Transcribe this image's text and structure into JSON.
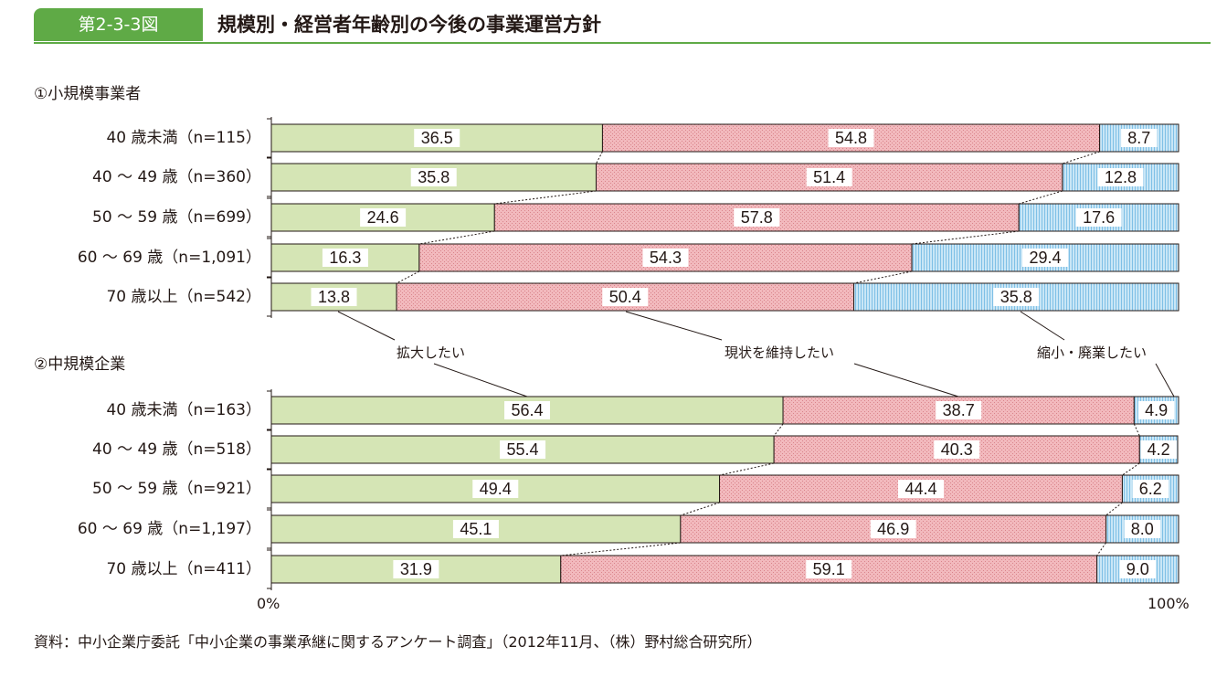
{
  "header": {
    "figure_number": "第2-3-3図",
    "title": "規模別・経営者年齢別の今後の事業運営方針"
  },
  "colors": {
    "accent": "#5faa46",
    "expand": "#d5e5b5",
    "maintain": "#f2b9bd",
    "shrink": "#b4dcf2"
  },
  "legend": {
    "expand": "拡大したい",
    "maintain": "現状を維持したい",
    "shrink": "縮小・廃業したい"
  },
  "axis": {
    "min_label": "0%",
    "max_label": "100%"
  },
  "source": "資料：中小企業庁委託「中小企業の事業承継に関するアンケート調査」（2012年11月、（株）野村総合研究所）",
  "chart_data": [
    {
      "type": "bar",
      "orientation": "horizontal",
      "stacked": true,
      "title": "①小規模事業者",
      "categories": [
        "40 歳未満（n=115）",
        "40 ～ 49 歳（n=360）",
        "50 ～ 59 歳（n=699）",
        "60 ～ 69 歳（n=1,091）",
        "70 歳以上（n=542）"
      ],
      "series": [
        {
          "name": "拡大したい",
          "values": [
            36.5,
            35.8,
            24.6,
            16.3,
            13.8
          ]
        },
        {
          "name": "現状を維持したい",
          "values": [
            54.8,
            51.4,
            57.8,
            54.3,
            50.4
          ]
        },
        {
          "name": "縮小・廃業したい",
          "values": [
            8.7,
            12.8,
            17.6,
            29.4,
            35.8
          ]
        }
      ],
      "xlim": [
        0,
        100
      ],
      "value_labels": [
        [
          "36.5",
          "54.8",
          "8.7"
        ],
        [
          "35.8",
          "51.4",
          "12.8"
        ],
        [
          "24.6",
          "57.8",
          "17.6"
        ],
        [
          "16.3",
          "54.3",
          "29.4"
        ],
        [
          "13.8",
          "50.4",
          "35.8"
        ]
      ]
    },
    {
      "type": "bar",
      "orientation": "horizontal",
      "stacked": true,
      "title": "②中規模企業",
      "categories": [
        "40 歳未満（n=163）",
        "40 ～ 49 歳（n=518）",
        "50 ～ 59 歳（n=921）",
        "60 ～ 69 歳（n=1,197）",
        "70 歳以上（n=411）"
      ],
      "series": [
        {
          "name": "拡大したい",
          "values": [
            56.4,
            55.4,
            49.4,
            45.1,
            31.9
          ]
        },
        {
          "name": "現状を維持したい",
          "values": [
            38.7,
            40.3,
            44.4,
            46.9,
            59.1
          ]
        },
        {
          "name": "縮小・廃業したい",
          "values": [
            4.9,
            4.2,
            6.2,
            8.0,
            9.0
          ]
        }
      ],
      "xlim": [
        0,
        100
      ],
      "value_labels": [
        [
          "56.4",
          "38.7",
          "4.9"
        ],
        [
          "55.4",
          "40.3",
          "4.2"
        ],
        [
          "49.4",
          "44.4",
          "6.2"
        ],
        [
          "45.1",
          "46.9",
          "8.0"
        ],
        [
          "31.9",
          "59.1",
          "9.0"
        ]
      ]
    }
  ]
}
